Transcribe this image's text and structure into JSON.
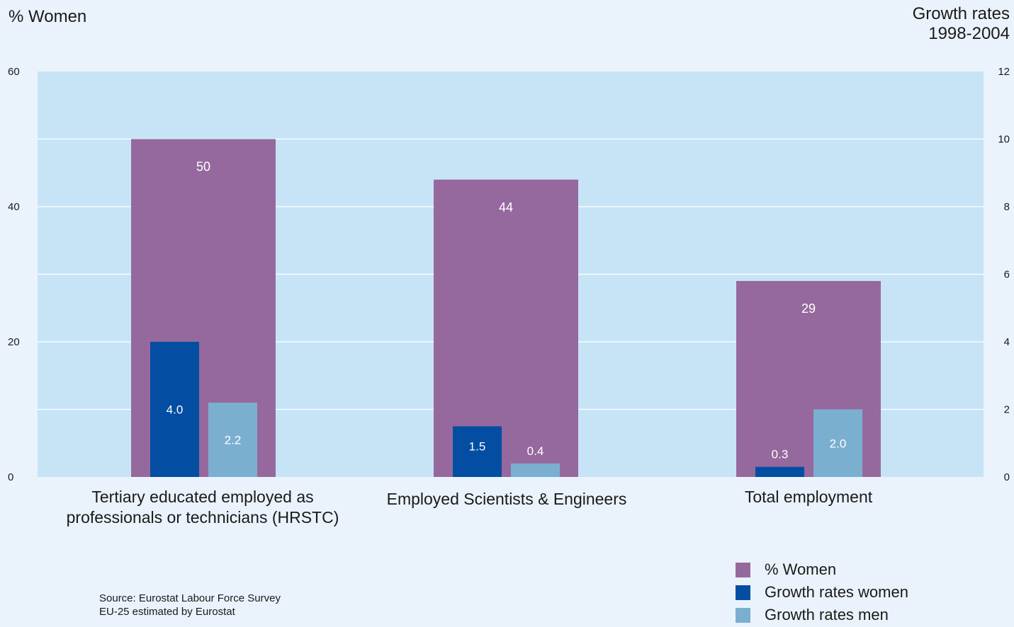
{
  "chart_data": {
    "type": "bar",
    "left_axis_title": "%  Women",
    "right_axis_title_line1": "Growth rates",
    "right_axis_title_line2": "1998-2004",
    "left_ylim": [
      0,
      60
    ],
    "left_ticks": [
      0,
      20,
      40,
      60
    ],
    "right_ylim": [
      0,
      12
    ],
    "right_ticks": [
      0,
      2,
      4,
      6,
      8,
      10,
      12
    ],
    "grid": true,
    "categories": [
      [
        "Tertiary educated employed as",
        "professionals or technicians (HRSTC)"
      ],
      [
        "Employed Scientists & Engineers"
      ],
      [
        "Total employment"
      ]
    ],
    "series": [
      {
        "name": "% Women",
        "axis": "left",
        "color": "#96699e",
        "values": [
          50,
          44,
          29
        ],
        "labels": [
          "50",
          "44",
          "29"
        ]
      },
      {
        "name": "Growth rates women",
        "axis": "right",
        "color": "#034ea2",
        "values": [
          4.0,
          1.5,
          0.3
        ],
        "labels": [
          "4.0",
          "1.5",
          "0.3"
        ]
      },
      {
        "name": "Growth rates men",
        "axis": "right",
        "color": "#7bafd0",
        "values": [
          2.2,
          0.4,
          2.0
        ],
        "labels": [
          "2.2",
          "0.4",
          "2.0"
        ]
      }
    ],
    "legend_position": "bottom-right",
    "plot_background": "#c7e4f7"
  },
  "source_line1": "Source: Eurostat Labour Force Survey",
  "source_line2": "EU-25 estimated by Eurostat"
}
